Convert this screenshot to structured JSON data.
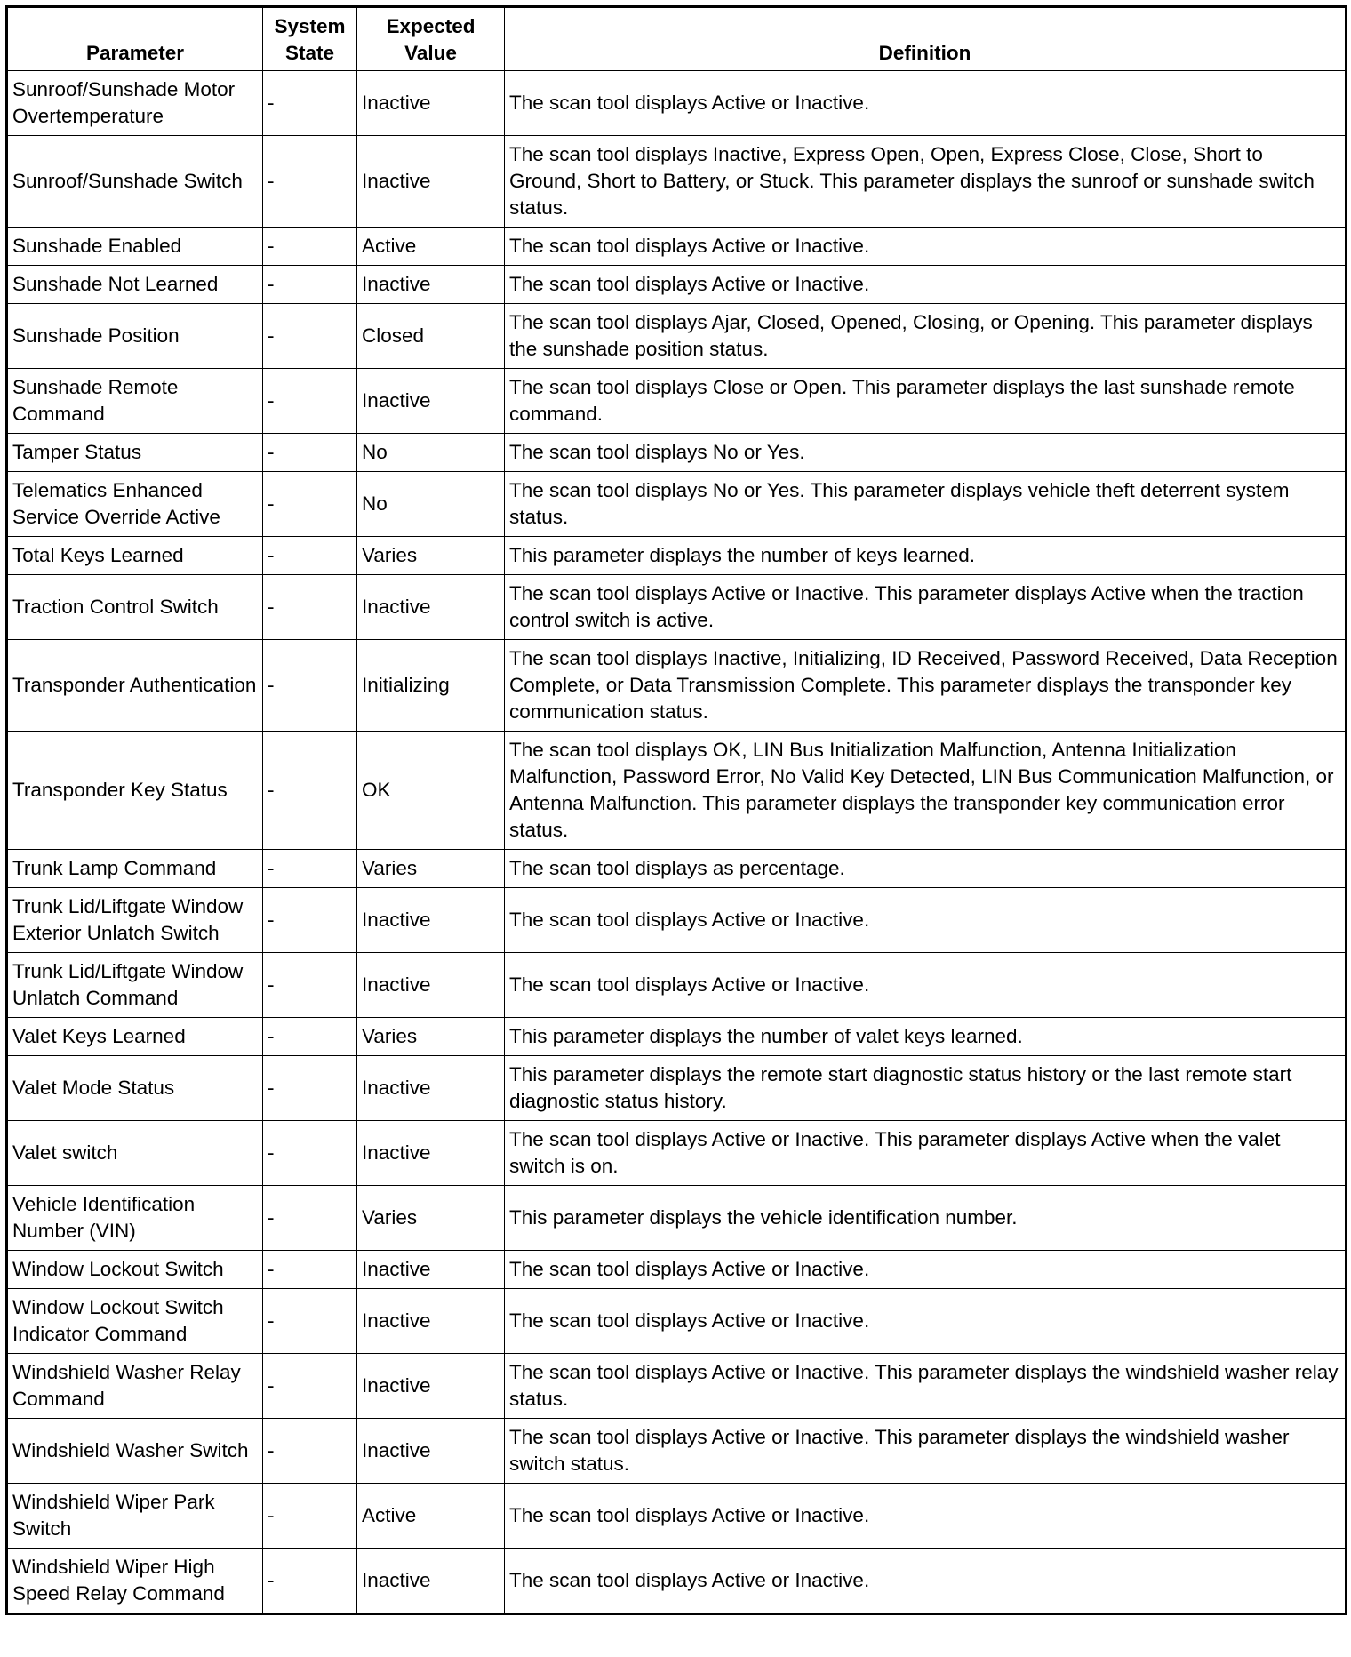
{
  "table": {
    "headers": [
      "Parameter",
      "System State",
      "Expected Value",
      "Definition"
    ],
    "rows": [
      {
        "parameter": "Sunroof/Sunshade Motor Overtemperature",
        "system_state": "-",
        "expected_value": "Inactive",
        "definition": "The scan tool displays Active or Inactive."
      },
      {
        "parameter": "Sunroof/Sunshade Switch",
        "system_state": "-",
        "expected_value": "Inactive",
        "definition": "The scan tool displays Inactive, Express Open, Open, Express Close, Close, Short to Ground, Short to Battery, or Stuck. This parameter displays the sunroof or sunshade switch status."
      },
      {
        "parameter": "Sunshade Enabled",
        "system_state": "-",
        "expected_value": "Active",
        "definition": "The scan tool displays Active or Inactive."
      },
      {
        "parameter": "Sunshade Not Learned",
        "system_state": "-",
        "expected_value": "Inactive",
        "definition": "The scan tool displays Active or Inactive."
      },
      {
        "parameter": "Sunshade Position",
        "system_state": "-",
        "expected_value": "Closed",
        "definition": "The scan tool displays Ajar, Closed, Opened, Closing, or Opening. This parameter displays the sunshade position status."
      },
      {
        "parameter": "Sunshade Remote Command",
        "system_state": "-",
        "expected_value": "Inactive",
        "definition": "The scan tool displays Close or Open. This parameter displays the last sunshade remote command."
      },
      {
        "parameter": "Tamper Status",
        "system_state": "-",
        "expected_value": "No",
        "definition": "The scan tool displays No or Yes."
      },
      {
        "parameter": "Telematics Enhanced Service Override Active",
        "system_state": "-",
        "expected_value": "No",
        "definition": "The scan tool displays No or Yes. This parameter displays vehicle theft deterrent system status."
      },
      {
        "parameter": "Total Keys Learned",
        "system_state": "-",
        "expected_value": "Varies",
        "definition": "This parameter displays the number of keys learned."
      },
      {
        "parameter": "Traction Control Switch",
        "system_state": "-",
        "expected_value": "Inactive",
        "definition": "The scan tool displays Active or Inactive. This parameter displays Active when the traction control switch is active."
      },
      {
        "parameter": "Transponder Authentication",
        "system_state": "-",
        "expected_value": "Initializing",
        "definition": "The scan tool displays Inactive, Initializing, ID Received, Password Received, Data Reception Complete, or Data Transmission Complete. This parameter displays the transponder key communication status."
      },
      {
        "parameter": "Transponder Key Status",
        "system_state": "-",
        "expected_value": "OK",
        "definition": "The scan tool displays OK, LIN Bus Initialization Malfunction, Antenna Initialization Malfunction, Password Error, No Valid Key Detected, LIN Bus Communication Malfunction, or Antenna Malfunction. This parameter displays the transponder key communication error status."
      },
      {
        "parameter": "Trunk Lamp Command",
        "system_state": "-",
        "expected_value": "Varies",
        "definition": "The scan tool displays as percentage."
      },
      {
        "parameter": "Trunk Lid/Liftgate Window Exterior Unlatch Switch",
        "system_state": "-",
        "expected_value": "Inactive",
        "definition": "The scan tool displays Active or Inactive."
      },
      {
        "parameter": "Trunk Lid/Liftgate Window Unlatch Command",
        "system_state": "-",
        "expected_value": "Inactive",
        "definition": "The scan tool displays Active or Inactive."
      },
      {
        "parameter": "Valet Keys Learned",
        "system_state": "-",
        "expected_value": "Varies",
        "definition": "This parameter displays the number of valet keys learned."
      },
      {
        "parameter": "Valet Mode Status",
        "system_state": "-",
        "expected_value": "Inactive",
        "definition": "This parameter displays the remote start diagnostic status history or the last remote start diagnostic status history."
      },
      {
        "parameter": "Valet switch",
        "system_state": "-",
        "expected_value": "Inactive",
        "definition": "The scan tool displays Active or Inactive. This parameter displays Active when the valet switch is on."
      },
      {
        "parameter": "Vehicle Identification Number (VIN)",
        "system_state": "-",
        "expected_value": "Varies",
        "definition": "This parameter displays the vehicle identification number."
      },
      {
        "parameter": "Window Lockout Switch",
        "system_state": "-",
        "expected_value": "Inactive",
        "definition": "The scan tool displays Active or Inactive."
      },
      {
        "parameter": "Window Lockout Switch Indicator Command",
        "system_state": "-",
        "expected_value": "Inactive",
        "definition": "The scan tool displays Active or Inactive."
      },
      {
        "parameter": "Windshield Washer Relay Command",
        "system_state": "-",
        "expected_value": "Inactive",
        "definition": "The scan tool displays Active or Inactive. This parameter displays the windshield washer relay status."
      },
      {
        "parameter": "Windshield Washer Switch",
        "system_state": "-",
        "expected_value": "Inactive",
        "definition": "The scan tool displays Active or Inactive. This parameter displays the windshield washer switch status."
      },
      {
        "parameter": "Windshield Wiper Park Switch",
        "system_state": "-",
        "expected_value": "Active",
        "definition": "The scan tool displays Active or Inactive."
      },
      {
        "parameter": "Windshield Wiper High Speed Relay Command",
        "system_state": "-",
        "expected_value": "Inactive",
        "definition": "The scan tool displays Active or Inactive."
      }
    ]
  }
}
